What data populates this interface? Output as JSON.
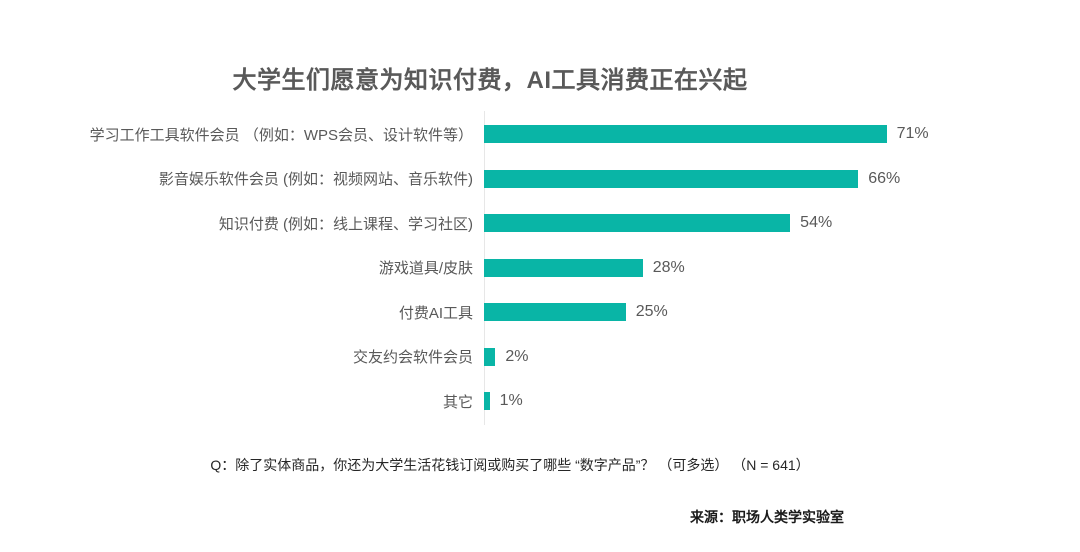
{
  "chart_data": {
    "type": "bar",
    "orientation": "horizontal",
    "title": "大学生们愿意为知识付费，AI工具消费正在兴起",
    "categories": [
      "学习工作工具软件会员 （例如：WPS会员、设计软件等）",
      "影音娱乐软件会员 (例如：视频网站、音乐软件)",
      "知识付费 (例如：线上课程、学习社区)",
      "游戏道具/皮肤",
      "付费AI工具",
      "交友约会软件会员",
      "其它"
    ],
    "values": [
      71,
      66,
      54,
      28,
      25,
      2,
      1
    ],
    "value_labels": [
      "71%",
      "66%",
      "54%",
      "28%",
      "25%",
      "2%",
      "1%"
    ],
    "xlim": [
      0,
      100
    ],
    "xlabel": "",
    "ylabel": "",
    "grid": false,
    "legend": false,
    "bar_color": "#09b5a6",
    "axis_line_color": "#e7e7e7",
    "text_color": "#595959"
  },
  "footer": {
    "question": "Q：除了实体商品，你还为大学生活花钱订阅或购买了哪些 “数字产品”？ （可多选） （N = 641）",
    "source": "来源：职场人类学实验室"
  }
}
